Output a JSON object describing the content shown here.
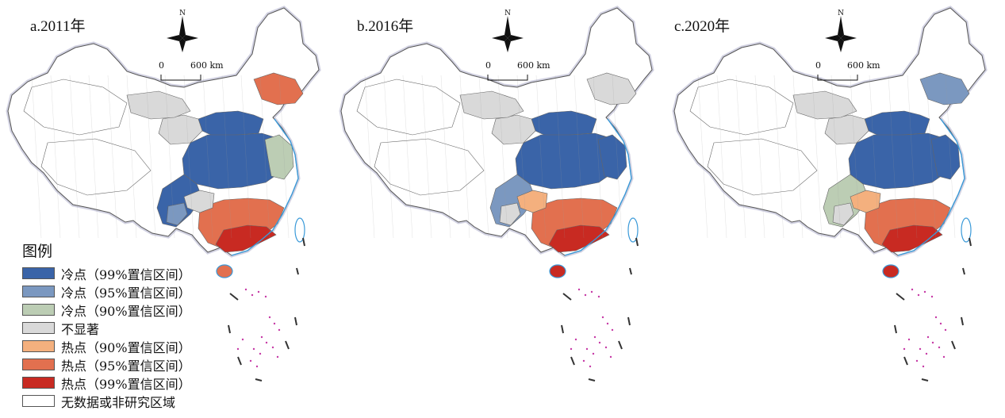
{
  "panels": [
    {
      "id": "a",
      "label": "a.2011年"
    },
    {
      "id": "b",
      "label": "b.2016年"
    },
    {
      "id": "c",
      "label": "c.2020年"
    }
  ],
  "compass": {
    "north_label": "N"
  },
  "scale_bar": {
    "start": "0",
    "end": "600 km"
  },
  "legend": {
    "title": "图例",
    "items": [
      {
        "label": "冷点（99%置信区间）",
        "color": "#3a64a8"
      },
      {
        "label": "冷点（95%置信区间）",
        "color": "#7b98c0"
      },
      {
        "label": "冷点（90%置信区间）",
        "color": "#bccdb4"
      },
      {
        "label": "不显著",
        "color": "#d9d9d9"
      },
      {
        "label": "热点（90%置信区间）",
        "color": "#f4b07e"
      },
      {
        "label": "热点（95%置信区间）",
        "color": "#e2704f"
      },
      {
        "label": "热点（99%置信区间）",
        "color": "#c82a22"
      },
      {
        "label": "无数据或非研究区域",
        "color": "#ffffff"
      }
    ]
  }
}
